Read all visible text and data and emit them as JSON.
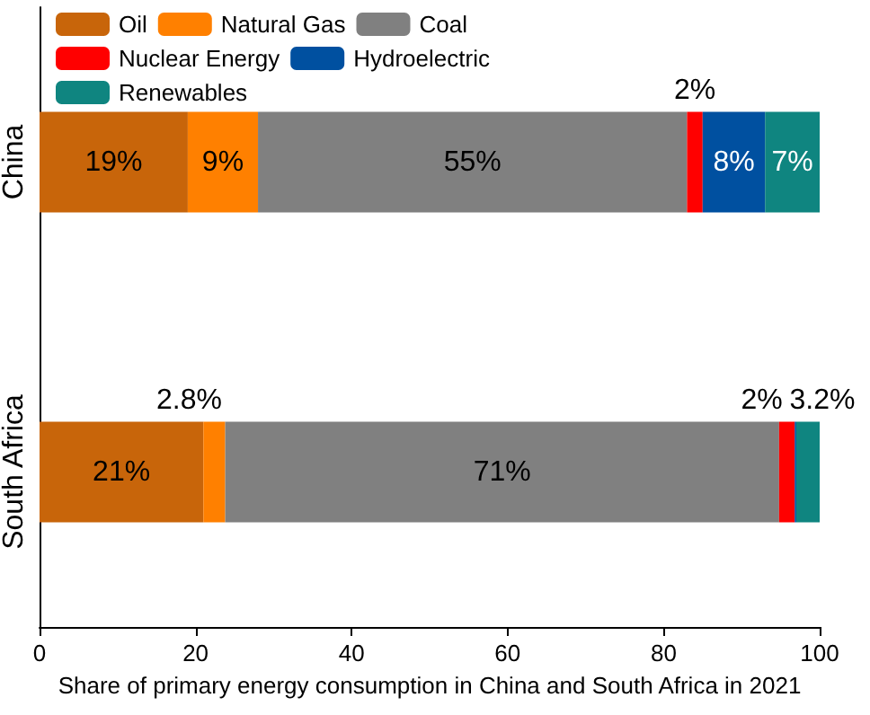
{
  "chart_data": {
    "type": "bar",
    "orientation": "horizontal",
    "stacked": true,
    "xlabel": "Share of primary energy consumption in China and South Africa in 2021",
    "categories": [
      "China",
      "South Africa"
    ],
    "series": [
      {
        "name": "Oil",
        "color": "#c8650a",
        "values": [
          19,
          21
        ],
        "value_labels": [
          "19%",
          "21%"
        ]
      },
      {
        "name": "Natural Gas",
        "color": "#ff8000",
        "values": [
          9,
          2.8
        ],
        "value_labels": [
          "9%",
          "2.8%"
        ]
      },
      {
        "name": "Coal",
        "color": "#808080",
        "values": [
          55,
          71
        ],
        "value_labels": [
          "55%",
          "71%"
        ]
      },
      {
        "name": "Nuclear Energy",
        "color": "#ff0000",
        "values": [
          2,
          2
        ],
        "value_labels": [
          "2%",
          "2%"
        ]
      },
      {
        "name": "Hydroelectric",
        "color": "#0050a0",
        "values": [
          8,
          0.2
        ],
        "value_labels": [
          "8%",
          null
        ]
      },
      {
        "name": "Renewables",
        "color": "#0f8580",
        "values": [
          7,
          3.2
        ],
        "value_labels": [
          "7%",
          "3.2%"
        ]
      }
    ],
    "xlim": [
      0,
      100
    ],
    "xticks": [
      0,
      20,
      40,
      60,
      80,
      100
    ],
    "legend": "top left",
    "grid": false
  }
}
